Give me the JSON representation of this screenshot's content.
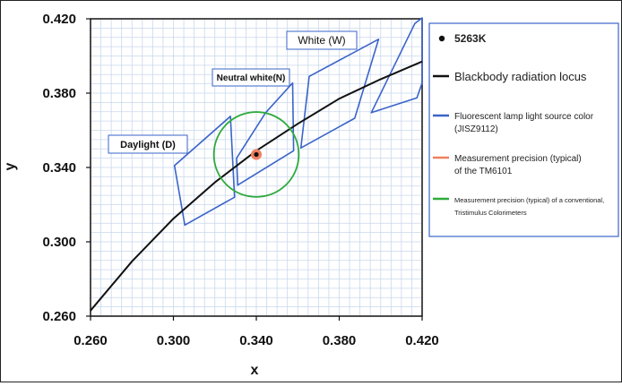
{
  "chart_data": {
    "type": "line",
    "title": "",
    "xlabel": "x",
    "ylabel": "y",
    "xlim": [
      0.26,
      0.42
    ],
    "ylim": [
      0.26,
      0.42
    ],
    "x_ticks": [
      "0.260",
      "0.300",
      "0.340",
      "0.380",
      "0.420"
    ],
    "y_ticks": [
      "0.260",
      "0.300",
      "0.340",
      "0.380",
      "0.420"
    ],
    "grid": true,
    "legend_position": "right",
    "colors": {
      "locus": "#111111",
      "fluorescent": "#3a64c8",
      "tm6101": "#f08060",
      "conventional": "#2eaa3c",
      "point": "#111111"
    },
    "blackbody_locus": {
      "x": [
        0.26,
        0.28,
        0.3,
        0.32,
        0.34,
        0.36,
        0.38,
        0.4,
        0.42
      ],
      "y": [
        0.263,
        0.2895,
        0.3125,
        0.332,
        0.349,
        0.3635,
        0.377,
        0.3875,
        0.397
      ]
    },
    "fluorescent_regions": [
      {
        "label": "Daylight (D)",
        "points": [
          [
            0.3005,
            0.341
          ],
          [
            0.3275,
            0.3675
          ],
          [
            0.3295,
            0.324
          ],
          [
            0.3055,
            0.309
          ]
        ]
      },
      {
        "label": "Neutral white(N)",
        "points": [
          [
            0.3305,
            0.345
          ],
          [
            0.3445,
            0.3695
          ],
          [
            0.3575,
            0.3855
          ],
          [
            0.358,
            0.349
          ],
          [
            0.331,
            0.3305
          ]
        ]
      },
      {
        "label": "White (W)",
        "points": [
          [
            0.3615,
            0.3505
          ],
          [
            0.3655,
            0.389
          ],
          [
            0.399,
            0.409
          ],
          [
            0.3875,
            0.3665
          ]
        ]
      },
      {
        "label": "",
        "points": [
          [
            0.3955,
            0.3695
          ],
          [
            0.4165,
            0.4175
          ],
          [
            0.42,
            0.4205
          ],
          [
            0.42,
            0.3855
          ],
          [
            0.4175,
            0.3775
          ]
        ]
      }
    ],
    "conventional_precision": {
      "center": [
        0.34,
        0.347
      ],
      "radius": 0.0205
    },
    "tm6101_precision": {
      "center": [
        0.34,
        0.347
      ],
      "radius": 0.0026
    },
    "point_5263K": {
      "x": 0.34,
      "y": 0.347
    }
  },
  "legend": [
    {
      "type": "point",
      "label": "5263K"
    },
    {
      "type": "line-black",
      "label": "Blackbody radiation locus"
    },
    {
      "type": "line-blue",
      "label": "Fluorescent lamp light source color",
      "label2": "(JISZ9112)"
    },
    {
      "type": "line-orange",
      "label": "Measurement precision (typical)",
      "label2": "of the TM6101"
    },
    {
      "type": "line-green",
      "label": "Measurement precision (typical) of a conventional,",
      "label2": "Tristimulus Colorimeters"
    }
  ]
}
